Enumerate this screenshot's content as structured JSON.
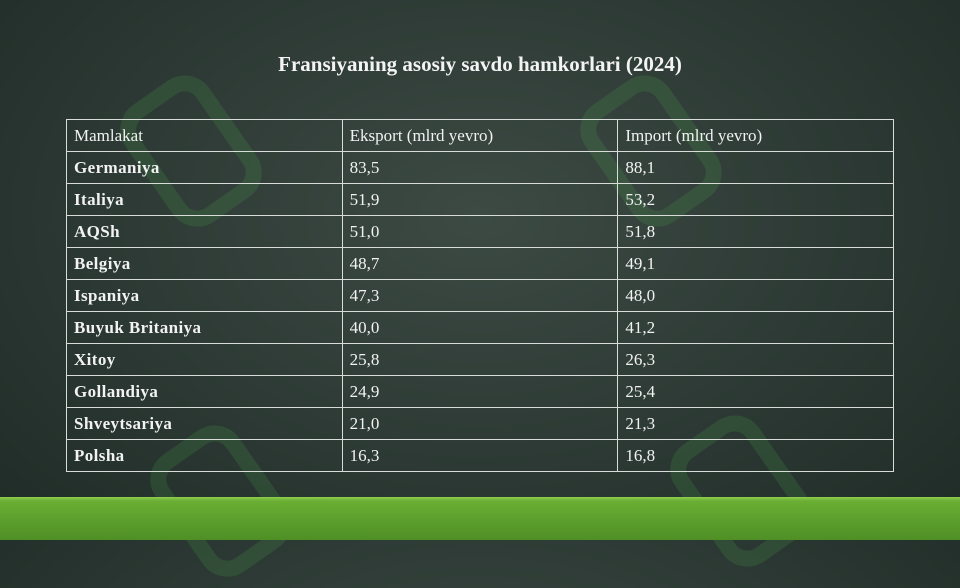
{
  "header": {
    "title": "Fransiyaning asosiy savdo hamkorlari (2024)"
  },
  "table": {
    "columns": [
      "Mamlakat",
      "Eksport (mlrd yevro)",
      "Import (mlrd yevro)"
    ],
    "rows": [
      [
        "Germaniya",
        "83,5",
        "88,1"
      ],
      [
        "Italiya",
        "51,9",
        "53,2"
      ],
      [
        "AQSh",
        "51,0",
        "51,8"
      ],
      [
        "Belgiya",
        "48,7",
        "49,1"
      ],
      [
        "Ispaniya",
        "47,3",
        "48,0"
      ],
      [
        "Buyuk Britaniya",
        "40,0",
        "41,2"
      ],
      [
        "Xitoy",
        "25,8",
        "26,3"
      ],
      [
        "Gollandiya",
        "24,9",
        "25,4"
      ],
      [
        "Shveytsariya",
        "21,0",
        "21,3"
      ],
      [
        "Polsha",
        "16,3",
        "16,8"
      ]
    ]
  }
}
